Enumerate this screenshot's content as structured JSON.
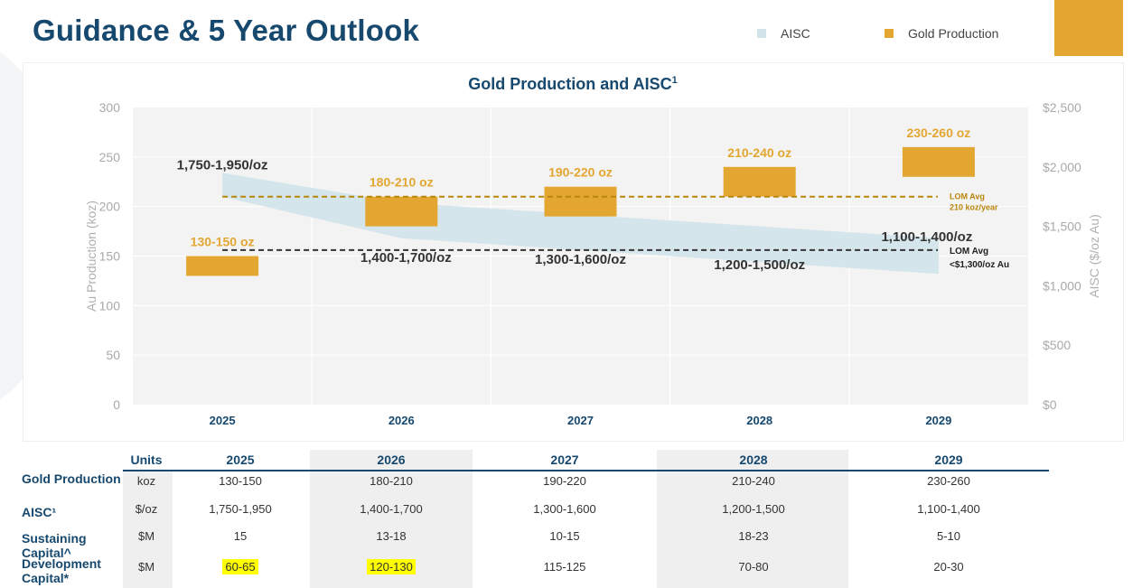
{
  "header": {
    "title": "Guidance & 5 Year Outlook",
    "legend": [
      {
        "label": "AISC",
        "color": "#d2e4ea"
      },
      {
        "label": "Gold Production",
        "color": "#e3a631"
      }
    ]
  },
  "chart_data": {
    "type": "bar",
    "title": "Gold Production and AISC",
    "title_superscript": "1",
    "categories": [
      "2025",
      "2026",
      "2027",
      "2028",
      "2029"
    ],
    "ylabel": "Au Production (koz)",
    "ylim": [
      0,
      300
    ],
    "yticks": [
      "300",
      "250",
      "200",
      "150",
      "100",
      "50",
      "0"
    ],
    "y2label": "AISC ($/oz Au)",
    "y2lim": [
      0,
      2500
    ],
    "y2ticks": [
      "$2,500",
      "$2,000",
      "$1,500",
      "$1,000",
      "$500",
      "$0"
    ],
    "grid": true,
    "series": [
      {
        "name": "Gold Production",
        "color": "#e3a631",
        "axis": "left",
        "low": [
          130,
          180,
          190,
          210,
          230
        ],
        "high": [
          150,
          210,
          220,
          240,
          260
        ],
        "labels": [
          "130-150 oz",
          "180-210 oz",
          "190-220 oz",
          "210-240 oz",
          "230-260 oz"
        ]
      },
      {
        "name": "AISC",
        "color": "#d2e4ea",
        "axis": "right",
        "low": [
          1750,
          1400,
          1300,
          1200,
          1100
        ],
        "high": [
          1950,
          1700,
          1600,
          1500,
          1400
        ],
        "labels": [
          "1,750-1,950/oz",
          "1,400-1,700/oz",
          "1,300-1,600/oz",
          "1,200-1,500/oz",
          "1,100-1,400/oz"
        ]
      }
    ],
    "reference_lines": [
      {
        "axis": "left",
        "value": 210,
        "color": "#b8860b",
        "label_lines": [
          "LOM Avg",
          "210 koz/year"
        ]
      },
      {
        "axis": "right",
        "value": 1300,
        "color": "#333333",
        "label_lines": [
          "LOM Avg",
          "<$1,300/oz Au"
        ]
      }
    ]
  },
  "table": {
    "headers": [
      "Units",
      "2025",
      "2026",
      "2027",
      "2028",
      "2029"
    ],
    "rows": [
      {
        "label": "Gold Production",
        "units": "koz",
        "values": [
          "130-150",
          "180-210",
          "190-220",
          "210-240",
          "230-260"
        ]
      },
      {
        "label": "AISC¹",
        "units": "$/oz",
        "values": [
          "1,750-1,950",
          "1,400-1,700",
          "1,300-1,600",
          "1,200-1,500",
          "1,100-1,400"
        ]
      },
      {
        "label": "Sustaining Capital^",
        "units": "$M",
        "values": [
          "15",
          "13-18",
          "10-15",
          "18-23",
          "5-10"
        ]
      },
      {
        "label": "Development Capital*",
        "units": "$M",
        "values": [
          "60-65",
          "120-130",
          "115-125",
          "70-80",
          "20-30"
        ]
      }
    ],
    "highlight_color": "#ffff00",
    "highlighted_cells": [
      [
        3,
        1
      ],
      [
        3,
        2
      ]
    ]
  }
}
